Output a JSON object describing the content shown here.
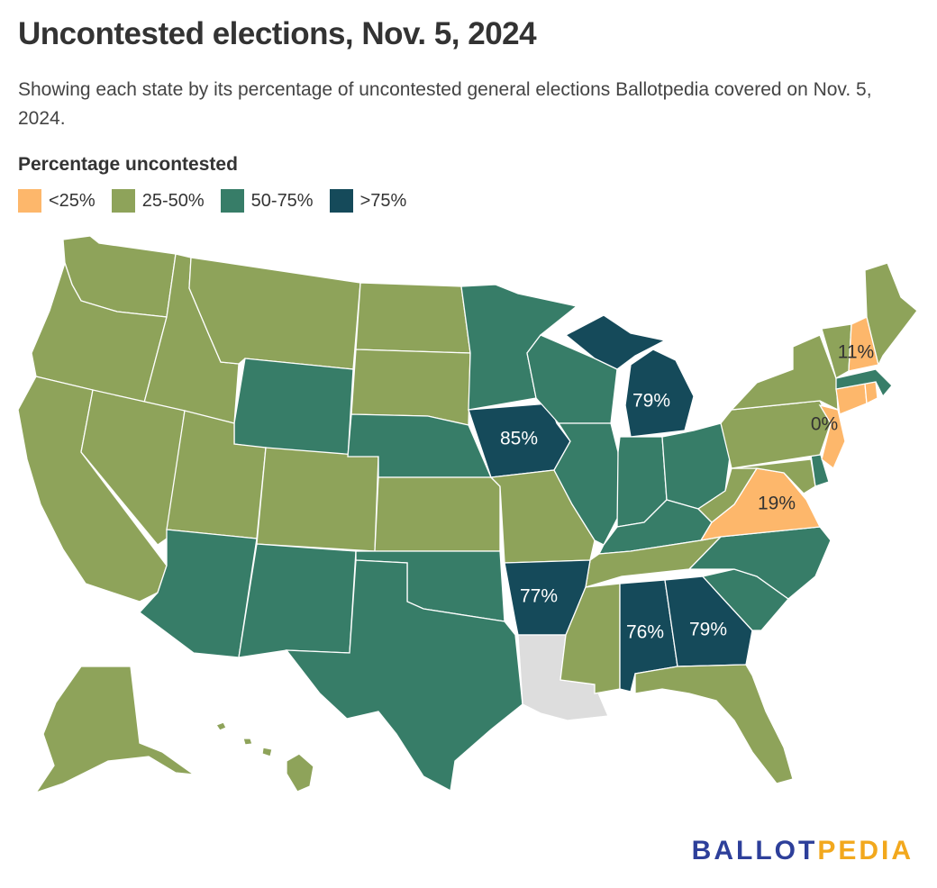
{
  "title": "Uncontested elections, Nov. 5, 2024",
  "subtitle": "Showing each state by its percentage of uncontested general elections Ballotpedia covered on Nov. 5, 2024.",
  "legend": {
    "title": "Percentage uncontested",
    "items": [
      {
        "label": "<25%",
        "color": "#fdb76b"
      },
      {
        "label": "25-50%",
        "color": "#8ea35a"
      },
      {
        "label": "50-75%",
        "color": "#377d68"
      },
      {
        "label": ">75%",
        "color": "#154a5a"
      }
    ]
  },
  "colors": {
    "no_data": "#dddddd",
    "border": "#ffffff"
  },
  "map_labels": {
    "NH": "11%",
    "NJ": "0%",
    "VA": "19%",
    "IA": "85%",
    "MI": "79%",
    "AR": "77%",
    "AL": "76%",
    "GA": "79%"
  },
  "states": {
    "WA": "25-50%",
    "OR": "25-50%",
    "CA": "25-50%",
    "ID": "25-50%",
    "NV": "25-50%",
    "MT": "25-50%",
    "UT": "25-50%",
    "CO": "25-50%",
    "ND": "25-50%",
    "SD": "25-50%",
    "KS": "25-50%",
    "MO": "25-50%",
    "TN": "25-50%",
    "MS": "25-50%",
    "FL": "25-50%",
    "WV": "25-50%",
    "PA": "25-50%",
    "NY": "25-50%",
    "VT": "25-50%",
    "ME": "25-50%",
    "MD": "25-50%",
    "AK": "25-50%",
    "HI": "25-50%",
    "WY": "50-75%",
    "NE": "50-75%",
    "MN": "50-75%",
    "WI": "50-75%",
    "IL": "50-75%",
    "IN": "50-75%",
    "OH": "50-75%",
    "KY": "50-75%",
    "NC": "50-75%",
    "SC": "50-75%",
    "AZ": "50-75%",
    "NM": "50-75%",
    "OK": "50-75%",
    "TX": "50-75%",
    "MA": "50-75%",
    "DE": "50-75%",
    "IA": ">75%",
    "MI": ">75%",
    "AR": ">75%",
    "AL": ">75%",
    "GA": ">75%",
    "NH": "<25%",
    "NJ": "<25%",
    "VA": "<25%",
    "CT": "<25%",
    "RI": "<25%",
    "LA": "none"
  },
  "logo": {
    "part1": "BALLOT",
    "part2": "PEDIA"
  }
}
